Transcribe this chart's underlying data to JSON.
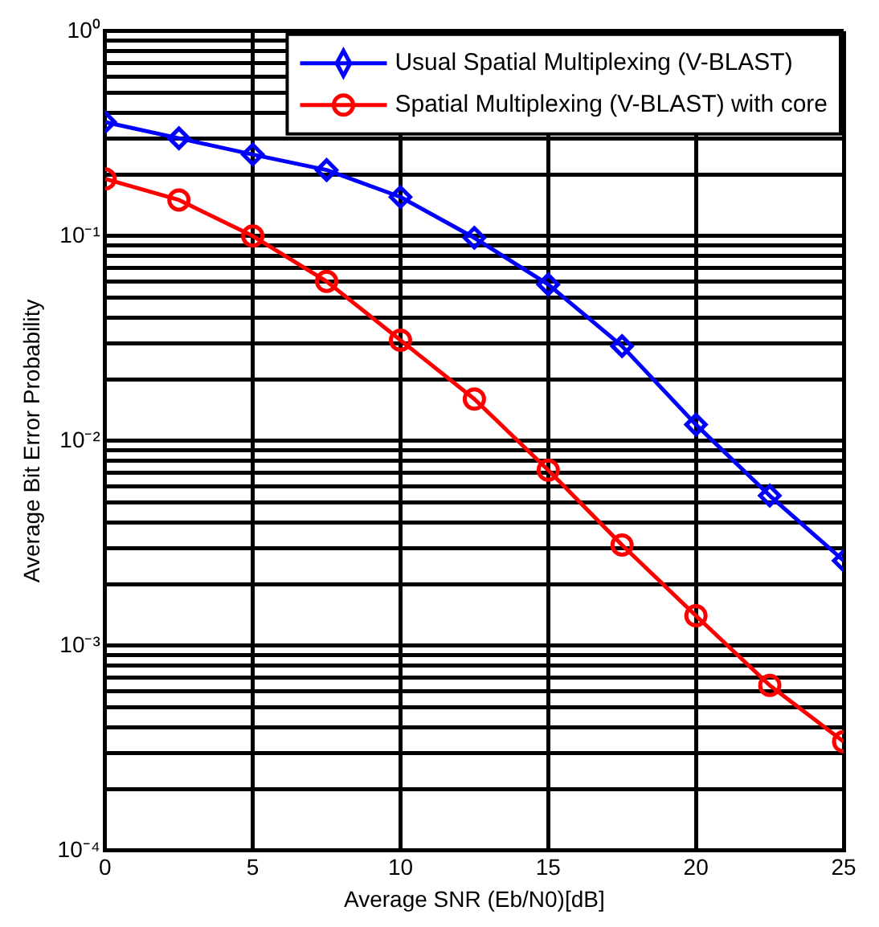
{
  "chart_data": {
    "type": "line",
    "xlabel": "Average SNR (Eb/N0)[dB]",
    "ylabel": "Average Bit Error Probability",
    "x": [
      0,
      2.5,
      5,
      7.5,
      10,
      12.5,
      15,
      17.5,
      20,
      22.5,
      25
    ],
    "series": [
      {
        "name": "Usual Spatial Multiplexing (V-BLAST)",
        "color": "#0000ff",
        "marker": "diamond",
        "values": [
          0.36,
          0.3,
          0.25,
          0.21,
          0.155,
          0.098,
          0.058,
          0.029,
          0.012,
          0.0054,
          0.0026
        ]
      },
      {
        "name": "Spatial Multiplexing (V-BLAST) with core",
        "color": "#ff0000",
        "marker": "circle",
        "values": [
          0.19,
          0.15,
          0.1,
          0.06,
          0.031,
          0.016,
          0.0072,
          0.0031,
          0.0014,
          0.00064,
          0.00034
        ]
      }
    ],
    "log": "y",
    "grid": true,
    "legend": "top right",
    "line_style": "solid",
    "xlim": [
      0,
      25
    ],
    "xticks": [
      0,
      5,
      10,
      15,
      20,
      25
    ],
    "ylim": [
      0.0001,
      1
    ],
    "yticks": [
      {
        "value": 0.0001,
        "label": "10⁻⁴"
      },
      {
        "value": 0.0002,
        "label": null
      },
      {
        "value": 0.0003,
        "label": null
      },
      {
        "value": 0.0004,
        "label": null
      },
      {
        "value": 0.0005,
        "label": null
      },
      {
        "value": 0.0006,
        "label": null
      },
      {
        "value": 0.0007,
        "label": null
      },
      {
        "value": 0.0008,
        "label": null
      },
      {
        "value": 0.0009,
        "label": null
      },
      {
        "value": 0.001,
        "label": "10⁻³"
      },
      {
        "value": 0.002,
        "label": null
      },
      {
        "value": 0.003,
        "label": null
      },
      {
        "value": 0.004,
        "label": null
      },
      {
        "value": 0.005,
        "label": null
      },
      {
        "value": 0.006,
        "label": null
      },
      {
        "value": 0.007,
        "label": null
      },
      {
        "value": 0.008,
        "label": null
      },
      {
        "value": 0.009,
        "label": null
      },
      {
        "value": 0.01,
        "label": "10⁻²"
      },
      {
        "value": 0.02,
        "label": null
      },
      {
        "value": 0.03,
        "label": null
      },
      {
        "value": 0.04,
        "label": null
      },
      {
        "value": 0.05,
        "label": null
      },
      {
        "value": 0.06,
        "label": null
      },
      {
        "value": 0.07,
        "label": null
      },
      {
        "value": 0.08,
        "label": null
      },
      {
        "value": 0.09,
        "label": null
      },
      {
        "value": 0.1,
        "label": "10⁻¹"
      },
      {
        "value": 0.2,
        "label": null
      },
      {
        "value": 0.3,
        "label": null
      },
      {
        "value": 0.4,
        "label": null
      },
      {
        "value": 0.5,
        "label": null
      },
      {
        "value": 0.6,
        "label": null
      },
      {
        "value": 0.7,
        "label": null
      },
      {
        "value": 0.8,
        "label": null
      },
      {
        "value": 0.9,
        "label": null
      },
      {
        "value": 1,
        "label": "10⁰"
      }
    ]
  }
}
